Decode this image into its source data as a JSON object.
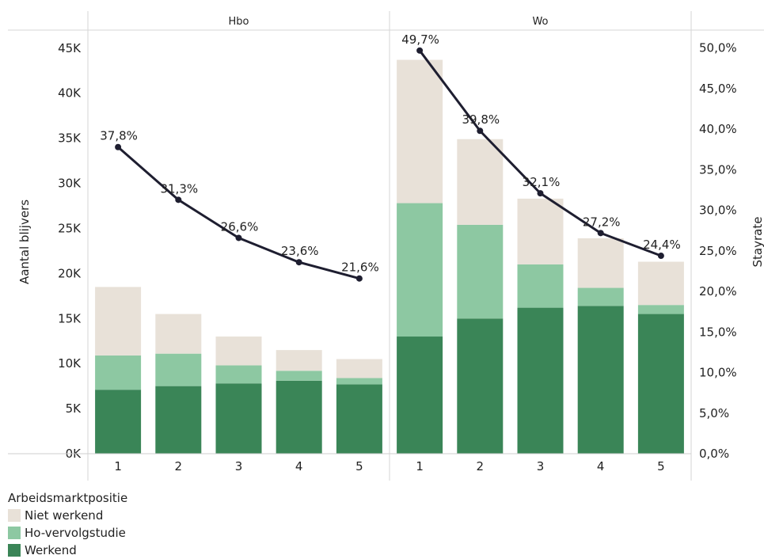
{
  "chart_data": {
    "type": "bar",
    "stacked": true,
    "secondary_type": "line",
    "facets": [
      "Hbo",
      "Wo"
    ],
    "categories": [
      "1",
      "2",
      "3",
      "4",
      "5"
    ],
    "ylabel": "Aantal blijvers",
    "y2label": "Stayrate",
    "ylim": [
      0,
      47000
    ],
    "y2lim": [
      0,
      0.5222
    ],
    "yticks": [
      "0K",
      "5K",
      "10K",
      "15K",
      "20K",
      "25K",
      "30K",
      "35K",
      "40K",
      "45K"
    ],
    "ytick_values": [
      0,
      5000,
      10000,
      15000,
      20000,
      25000,
      30000,
      35000,
      40000,
      45000
    ],
    "y2ticks": [
      "0,0%",
      "5,0%",
      "10,0%",
      "15,0%",
      "20,0%",
      "25,0%",
      "30,0%",
      "35,0%",
      "40,0%",
      "45,0%",
      "50,0%"
    ],
    "y2tick_values": [
      0,
      0.05,
      0.1,
      0.15,
      0.2,
      0.25,
      0.3,
      0.35,
      0.4,
      0.45,
      0.5
    ],
    "legend_title": "Arbeidsmarktpositie",
    "legend_position": "bottom-left",
    "series": [
      {
        "name": "Werkend",
        "color": "#3a8557",
        "values": {
          "Hbo": [
            7100,
            7500,
            7800,
            8100,
            7700
          ],
          "Wo": [
            13000,
            15000,
            16200,
            16400,
            15500
          ]
        }
      },
      {
        "name": "Ho-vervolgstudie",
        "color": "#8dc8a2",
        "values": {
          "Hbo": [
            3800,
            3600,
            2000,
            1100,
            700
          ],
          "Wo": [
            14800,
            10400,
            4800,
            2000,
            1000
          ]
        }
      },
      {
        "name": "Niet werkend",
        "color": "#e8e1d8",
        "values": {
          "Hbo": [
            7600,
            4400,
            3200,
            2300,
            2100
          ],
          "Wo": [
            15900,
            9500,
            7300,
            5500,
            4800
          ]
        }
      }
    ],
    "line_series": {
      "name": "Stayrate",
      "color": "#1e1e30",
      "values": {
        "Hbo": [
          0.378,
          0.313,
          0.266,
          0.236,
          0.216
        ],
        "Wo": [
          0.497,
          0.398,
          0.321,
          0.272,
          0.244
        ]
      },
      "labels": {
        "Hbo": [
          "37,8%",
          "31,3%",
          "26,6%",
          "23,6%",
          "21,6%"
        ],
        "Wo": [
          "49,7%",
          "39,8%",
          "32,1%",
          "27,2%",
          "24,4%"
        ]
      }
    }
  }
}
